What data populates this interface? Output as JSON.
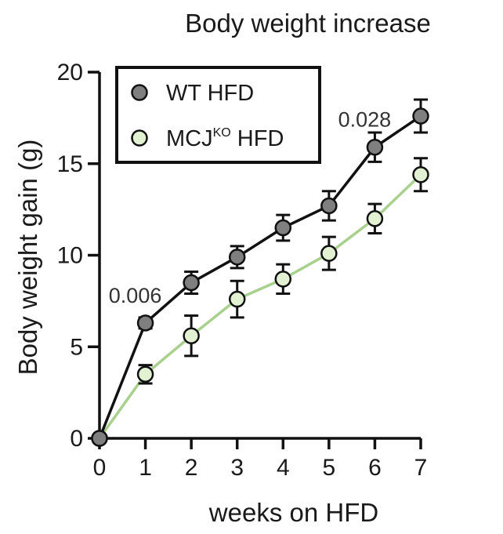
{
  "chart_data": {
    "type": "line",
    "title": "Body weight increase",
    "xlabel": "weeks on HFD",
    "ylabel": "Body weight gain (g)",
    "xlim": [
      0,
      7
    ],
    "ylim": [
      0,
      20
    ],
    "x": [
      0,
      1,
      2,
      3,
      4,
      5,
      6,
      7
    ],
    "x_ticks": [
      "0",
      "1",
      "2",
      "3",
      "4",
      "5",
      "6",
      "7"
    ],
    "y_ticks": [
      0,
      5,
      10,
      15,
      20
    ],
    "y_tick_labels": [
      "0",
      "5",
      "10",
      "15",
      "20"
    ],
    "grid": false,
    "legend_position": "top-left",
    "series": [
      {
        "name": "WT HFD",
        "values": [
          0,
          6.3,
          8.5,
          9.9,
          11.5,
          12.7,
          15.9,
          17.6
        ],
        "errors": [
          0,
          0.3,
          0.6,
          0.6,
          0.7,
          0.8,
          0.8,
          0.9
        ],
        "line_color": "#111111",
        "marker_color": "#7f7f7f"
      },
      {
        "name": "MCJ",
        "name_superscript": "KO",
        "name_suffix": " HFD",
        "values": [
          0,
          3.5,
          5.6,
          7.6,
          8.7,
          10.1,
          12.0,
          14.4
        ],
        "errors": [
          0,
          0.5,
          1.1,
          1.0,
          0.8,
          0.9,
          0.8,
          0.9
        ],
        "line_color": "#a9d18e",
        "marker_color": "#e3f1d3"
      }
    ],
    "annotations": [
      {
        "text": "0.006",
        "x": 1,
        "y": 6.3
      },
      {
        "text": "0.028",
        "x": 6,
        "y": 15.9
      }
    ]
  }
}
